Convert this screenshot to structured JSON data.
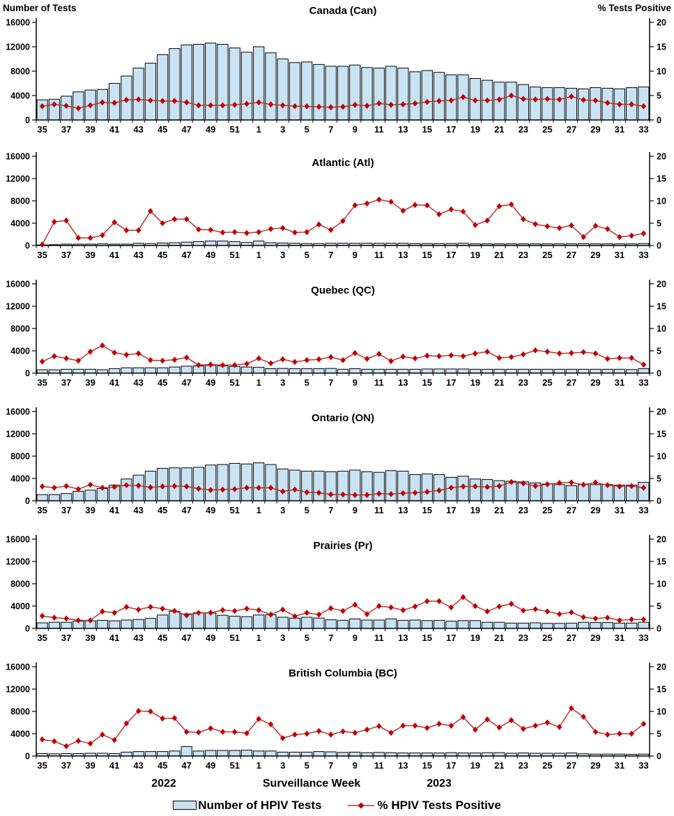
{
  "header": {
    "left_axis_title": "Number of Tests",
    "right_axis_title": "% Tests Positive"
  },
  "chart_data": {
    "type": "bar",
    "subtype": "combo-bar-line-small-multiples",
    "xlabel": "Surveillance Week",
    "year_labels": {
      "left": "2022",
      "right": "2023"
    },
    "weeks": [
      35,
      36,
      37,
      38,
      39,
      40,
      41,
      42,
      43,
      44,
      45,
      46,
      47,
      48,
      49,
      50,
      51,
      52,
      1,
      2,
      3,
      4,
      5,
      6,
      7,
      8,
      9,
      10,
      11,
      12,
      13,
      14,
      15,
      16,
      17,
      18,
      19,
      20,
      21,
      22,
      23,
      24,
      25,
      26,
      27,
      28,
      29,
      30,
      31,
      32,
      33
    ],
    "x_tick_labels": [
      "35",
      "37",
      "39",
      "41",
      "43",
      "45",
      "47",
      "49",
      "51",
      "1",
      "3",
      "5",
      "7",
      "9",
      "11",
      "13",
      "15",
      "17",
      "19",
      "21",
      "23",
      "25",
      "27",
      "29",
      "31",
      "33"
    ],
    "left_axis": {
      "title": "Number of Tests",
      "min": 0,
      "max": 16000,
      "ticks": [
        0,
        4000,
        8000,
        12000,
        16000
      ]
    },
    "right_axis": {
      "title": "% Tests Positive",
      "min": 0,
      "max": 20,
      "ticks": [
        0,
        5,
        10,
        15,
        20
      ]
    },
    "colors": {
      "bar_fill": "#C9E3F4",
      "bar_stroke": "#000000",
      "line": "#C03030",
      "marker": "#C00000"
    },
    "legend": [
      {
        "type": "bar",
        "label": "Number of HPIV Tests"
      },
      {
        "type": "line",
        "label": "% HPIV Tests Positive"
      }
    ],
    "panels": [
      {
        "title": "Canada (Can)",
        "bars": [
          3300,
          3400,
          3900,
          4600,
          4900,
          5000,
          6000,
          7200,
          8500,
          9300,
          10700,
          11700,
          12300,
          12400,
          12600,
          12400,
          11800,
          11100,
          12000,
          11000,
          10000,
          9400,
          9500,
          9100,
          8800,
          8800,
          9000,
          8600,
          8500,
          8800,
          8500,
          7900,
          8100,
          7800,
          7400,
          7400,
          6800,
          6500,
          6200,
          6200,
          5800,
          5400,
          5300,
          5300,
          5200,
          5100,
          5300,
          5200,
          5100,
          5300,
          5400
        ],
        "pct_positive": [
          2.8,
          3.2,
          2.9,
          2.4,
          3.0,
          3.6,
          3.5,
          4.1,
          4.2,
          4.0,
          3.9,
          3.9,
          3.6,
          3.0,
          3.0,
          3.0,
          3.1,
          3.3,
          3.6,
          3.2,
          3.0,
          2.8,
          2.8,
          2.7,
          2.6,
          2.7,
          3.1,
          2.9,
          3.4,
          3.1,
          3.2,
          3.4,
          3.7,
          3.9,
          4.0,
          4.7,
          4.0,
          4.0,
          4.2,
          5.0,
          4.3,
          4.2,
          4.3,
          4.2,
          4.8,
          4.1,
          4.0,
          3.5,
          3.2,
          3.2,
          2.8
        ]
      },
      {
        "title": "Atlantic (Atl)",
        "bars": [
          100,
          150,
          250,
          250,
          250,
          300,
          250,
          250,
          400,
          350,
          450,
          500,
          600,
          700,
          800,
          800,
          700,
          550,
          800,
          500,
          450,
          400,
          350,
          350,
          400,
          400,
          400,
          400,
          400,
          400,
          400,
          350,
          350,
          350,
          350,
          400,
          300,
          300,
          300,
          300,
          300,
          300,
          300,
          300,
          300,
          350,
          300,
          300,
          300,
          300,
          350
        ],
        "pct_positive": [
          0.2,
          5.3,
          5.6,
          1.7,
          1.7,
          2.3,
          5.2,
          3.4,
          3.4,
          7.7,
          5.0,
          5.9,
          5.9,
          3.6,
          3.5,
          2.9,
          3.0,
          2.8,
          3.0,
          3.7,
          3.9,
          2.9,
          3.0,
          4.7,
          3.5,
          5.5,
          9.0,
          9.4,
          10.3,
          9.8,
          7.8,
          9.1,
          9.0,
          7.0,
          8.1,
          7.6,
          4.6,
          5.6,
          8.8,
          9.2,
          5.9,
          4.8,
          4.3,
          3.9,
          4.5,
          1.9,
          4.4,
          3.7,
          1.9,
          2.2,
          2.7
        ]
      },
      {
        "title": "Quebec (QC)",
        "bars": [
          600,
          600,
          700,
          700,
          700,
          600,
          800,
          950,
          950,
          950,
          950,
          1100,
          1250,
          1300,
          1400,
          1300,
          1200,
          1100,
          1050,
          800,
          850,
          800,
          800,
          800,
          850,
          700,
          800,
          700,
          700,
          700,
          700,
          700,
          750,
          750,
          750,
          750,
          700,
          700,
          700,
          700,
          700,
          700,
          700,
          700,
          700,
          700,
          700,
          700,
          700,
          650,
          800
        ],
        "pct_positive": [
          2.6,
          3.8,
          3.3,
          2.8,
          4.8,
          6.2,
          4.6,
          4.1,
          4.4,
          2.9,
          2.8,
          3.0,
          3.5,
          1.8,
          1.9,
          1.8,
          1.8,
          2.1,
          3.3,
          2.2,
          3.1,
          2.5,
          2.9,
          3.1,
          3.6,
          2.9,
          4.5,
          3.2,
          4.3,
          2.7,
          3.7,
          3.3,
          3.9,
          3.8,
          4.0,
          3.8,
          4.4,
          4.8,
          3.4,
          3.6,
          4.2,
          5.1,
          4.8,
          4.4,
          4.5,
          4.7,
          4.4,
          3.2,
          3.4,
          3.4,
          1.9
        ]
      },
      {
        "title": "Ontario (ON)",
        "bars": [
          1100,
          1100,
          1300,
          1700,
          1900,
          2200,
          2800,
          3900,
          4600,
          5300,
          5800,
          5900,
          5900,
          6000,
          6400,
          6500,
          6700,
          6600,
          6800,
          6500,
          5700,
          5500,
          5300,
          5300,
          5200,
          5300,
          5500,
          5200,
          5100,
          5400,
          5300,
          4700,
          4800,
          4700,
          4200,
          4400,
          3900,
          3800,
          3600,
          3500,
          3400,
          3200,
          3000,
          2900,
          2700,
          2900,
          2900,
          2900,
          2800,
          2800,
          3300
        ],
        "pct_positive": [
          3.2,
          2.9,
          3.3,
          2.6,
          3.6,
          2.9,
          3.1,
          3.5,
          3.4,
          3.0,
          3.2,
          3.3,
          3.2,
          2.7,
          2.4,
          2.5,
          2.6,
          2.9,
          2.9,
          2.9,
          2.1,
          2.5,
          1.9,
          1.8,
          1.4,
          1.4,
          1.3,
          1.3,
          1.6,
          1.5,
          1.7,
          1.8,
          2.0,
          2.3,
          2.9,
          3.2,
          3.2,
          3.1,
          3.3,
          4.2,
          3.9,
          3.3,
          3.7,
          4.0,
          4.1,
          3.6,
          4.1,
          3.5,
          3.2,
          3.3,
          2.9
        ]
      },
      {
        "title": "Prairies (Pr)",
        "bars": [
          1000,
          1100,
          1100,
          1300,
          1350,
          1450,
          1350,
          1500,
          1600,
          1800,
          2400,
          3050,
          2600,
          2800,
          2750,
          2350,
          2200,
          2100,
          2400,
          2450,
          2000,
          1850,
          2000,
          1850,
          1550,
          1450,
          1700,
          1500,
          1500,
          1700,
          1450,
          1500,
          1400,
          1450,
          1300,
          1400,
          1400,
          1100,
          1100,
          950,
          950,
          1000,
          900,
          900,
          950,
          1100,
          1050,
          1050,
          950,
          950,
          1100
        ],
        "pct_positive": [
          2.8,
          2.4,
          2.2,
          1.8,
          1.8,
          3.8,
          3.5,
          4.8,
          4.2,
          4.8,
          4.4,
          3.9,
          2.9,
          3.5,
          3.5,
          4.1,
          3.9,
          4.4,
          4.1,
          3.1,
          4.2,
          2.7,
          3.5,
          3.1,
          4.5,
          3.9,
          5.3,
          3.2,
          5.0,
          4.7,
          4.1,
          4.9,
          6.1,
          6.1,
          4.7,
          7.0,
          5.0,
          3.8,
          4.9,
          5.5,
          4.0,
          4.3,
          3.8,
          3.2,
          3.6,
          2.5,
          2.2,
          2.4,
          1.8,
          2.0,
          2.0
        ]
      },
      {
        "title": "British Columbia (BC)",
        "bars": [
          450,
          400,
          450,
          450,
          500,
          500,
          450,
          700,
          800,
          800,
          800,
          900,
          1700,
          900,
          1000,
          1000,
          1000,
          1050,
          900,
          900,
          700,
          700,
          700,
          800,
          750,
          650,
          700,
          600,
          650,
          600,
          550,
          550,
          550,
          550,
          600,
          550,
          550,
          600,
          600,
          500,
          550,
          500,
          500,
          500,
          550,
          400,
          350,
          350,
          350,
          300,
          350
        ],
        "pct_positive": [
          3.7,
          3.3,
          2.2,
          3.4,
          2.8,
          4.8,
          3.6,
          7.3,
          10.1,
          10.0,
          8.4,
          8.5,
          5.4,
          5.3,
          6.2,
          5.4,
          5.4,
          5.1,
          8.3,
          7.1,
          4.0,
          4.8,
          5.0,
          5.6,
          4.8,
          5.5,
          5.2,
          5.9,
          6.7,
          5.2,
          6.8,
          6.8,
          6.3,
          7.2,
          6.8,
          8.7,
          5.9,
          8.2,
          6.4,
          8.0,
          6.1,
          6.8,
          7.5,
          6.5,
          10.7,
          8.8,
          5.4,
          4.8,
          5.0,
          5.0,
          7.2
        ]
      }
    ]
  }
}
